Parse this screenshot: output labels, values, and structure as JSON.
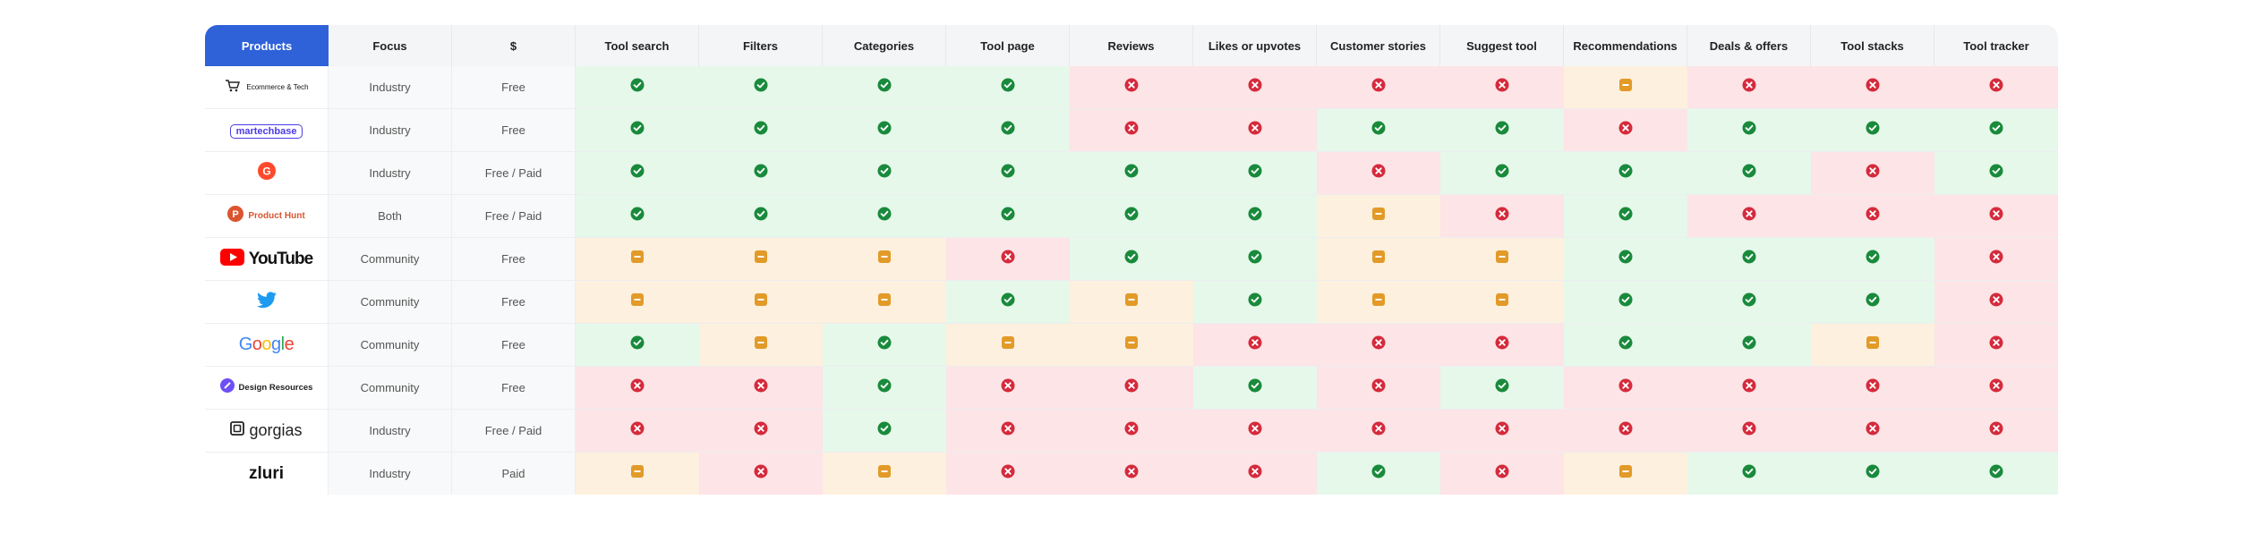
{
  "table": {
    "headers": {
      "products": "Products",
      "focus": "Focus",
      "price": "$",
      "features": [
        "Tool search",
        "Filters",
        "Categories",
        "Tool page",
        "Reviews",
        "Likes or upvotes",
        "Customer stories",
        "Suggest tool",
        "Recommendations",
        "Deals & offers",
        "Tool stacks",
        "Tool tracker"
      ]
    },
    "legend_values": {
      "yes": "check-icon",
      "no": "cross-icon",
      "partial": "partial-icon"
    },
    "status_colors": {
      "yes_bg": "#e6f8ea",
      "no_bg": "#fde4e6",
      "partial_bg": "#fdf0de",
      "yes": "#198a3c",
      "no": "#d52a3c",
      "partial": "#e29a28",
      "header_accent": "#2f62d9"
    },
    "rows": [
      {
        "product": "Ecommerce & Tech",
        "logo": "ecommerce-tech-logo",
        "focus": "Industry",
        "price": "Free",
        "values": [
          "yes",
          "yes",
          "yes",
          "yes",
          "no",
          "no",
          "no",
          "no",
          "partial",
          "no",
          "no",
          "no"
        ]
      },
      {
        "product": "martechbase",
        "logo": "martechbase-logo",
        "focus": "Industry",
        "price": "Free",
        "values": [
          "yes",
          "yes",
          "yes",
          "yes",
          "no",
          "no",
          "yes",
          "yes",
          "no",
          "yes",
          "yes",
          "yes"
        ]
      },
      {
        "product": "G2",
        "logo": "g2-logo",
        "focus": "Industry",
        "price": "Free / Paid",
        "values": [
          "yes",
          "yes",
          "yes",
          "yes",
          "yes",
          "yes",
          "no",
          "yes",
          "yes",
          "yes",
          "no",
          "yes"
        ]
      },
      {
        "product": "Product Hunt",
        "logo": "product-hunt-logo",
        "focus": "Both",
        "price": "Free / Paid",
        "values": [
          "yes",
          "yes",
          "yes",
          "yes",
          "yes",
          "yes",
          "partial",
          "no",
          "yes",
          "no",
          "no",
          "no"
        ]
      },
      {
        "product": "YouTube",
        "logo": "youtube-logo",
        "focus": "Community",
        "price": "Free",
        "values": [
          "partial",
          "partial",
          "partial",
          "no",
          "yes",
          "yes",
          "partial",
          "partial",
          "yes",
          "yes",
          "yes",
          "no"
        ]
      },
      {
        "product": "Twitter",
        "logo": "twitter-logo",
        "focus": "Community",
        "price": "Free",
        "values": [
          "partial",
          "partial",
          "partial",
          "yes",
          "partial",
          "yes",
          "partial",
          "partial",
          "yes",
          "yes",
          "yes",
          "no"
        ]
      },
      {
        "product": "Google",
        "logo": "google-logo",
        "focus": "Community",
        "price": "Free",
        "values": [
          "yes",
          "partial",
          "yes",
          "partial",
          "partial",
          "no",
          "no",
          "no",
          "yes",
          "yes",
          "partial",
          "no"
        ]
      },
      {
        "product": "Design Resources",
        "logo": "design-resources-logo",
        "focus": "Community",
        "price": "Free",
        "values": [
          "no",
          "no",
          "yes",
          "no",
          "no",
          "yes",
          "no",
          "yes",
          "no",
          "no",
          "no",
          "no"
        ]
      },
      {
        "product": "gorgias",
        "logo": "gorgias-logo",
        "focus": "Industry",
        "price": "Free / Paid",
        "values": [
          "no",
          "no",
          "yes",
          "no",
          "no",
          "no",
          "no",
          "no",
          "no",
          "no",
          "no",
          "no"
        ]
      },
      {
        "product": "zluri",
        "logo": "zluri-logo",
        "focus": "Industry",
        "price": "Paid",
        "values": [
          "partial",
          "no",
          "partial",
          "no",
          "no",
          "no",
          "yes",
          "no",
          "partial",
          "yes",
          "yes",
          "yes"
        ]
      }
    ]
  }
}
